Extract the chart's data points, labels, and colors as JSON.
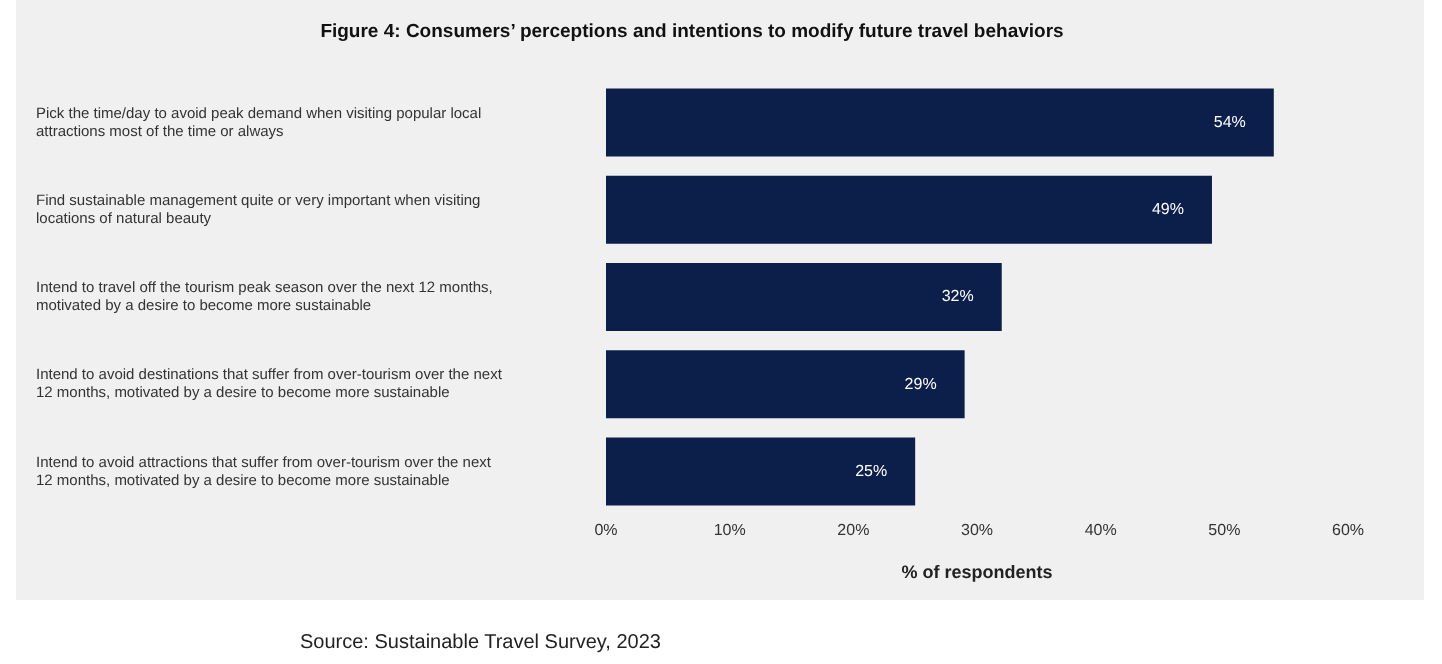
{
  "chart_data": {
    "type": "bar",
    "orientation": "horizontal",
    "title": "Figure 4: Consumers’ perceptions and intentions to modify future travel behaviors",
    "xlabel": "% of respondents",
    "categories": [
      "Pick the time/day to avoid peak demand when visiting popular local\nattractions most of the time or always",
      "Find sustainable management quite or very important when visiting\nlocations of natural beauty",
      "Intend to travel off the tourism peak season over the next 12 months,\nmotivated by a desire to become more sustainable",
      "Intend to avoid destinations that suffer from over-tourism over the next\n12 months, motivated by a desire to become more sustainable",
      "Intend to avoid attractions that suffer from over-tourism over the next\n12 months, motivated by a desire to become more sustainable"
    ],
    "values": [
      54,
      49,
      32,
      29,
      25
    ],
    "color": "#0c1f4b",
    "value_labels": [
      "54%",
      "49%",
      "32%",
      "29%",
      "25%"
    ],
    "xlim": [
      0,
      60
    ],
    "xticks": [
      {
        "value": 0,
        "label": "0%"
      },
      {
        "value": 10,
        "label": "10%"
      },
      {
        "value": 20,
        "label": "20%"
      },
      {
        "value": 30,
        "label": "30%"
      },
      {
        "value": 40,
        "label": "40%"
      },
      {
        "value": 50,
        "label": "50%"
      },
      {
        "value": 60,
        "label": "60%"
      }
    ],
    "grid": false,
    "legend": false,
    "annotations": [
      "Source: Sustainable Travel Survey, 2023"
    ]
  }
}
